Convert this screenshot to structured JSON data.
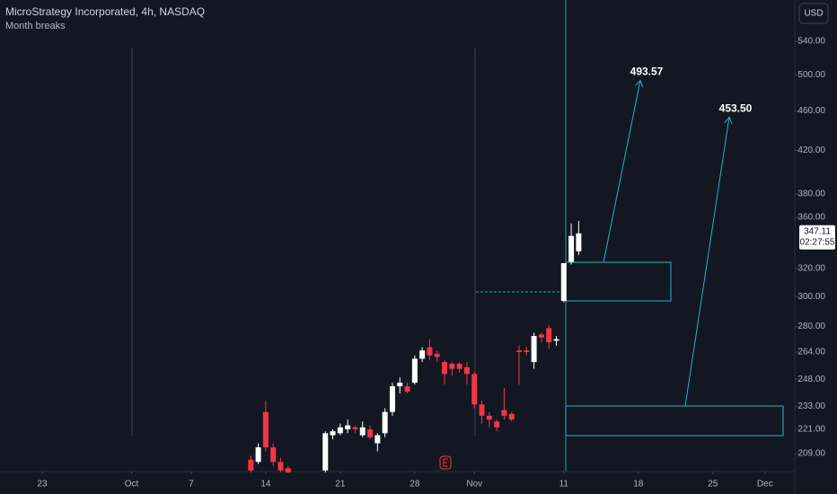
{
  "chart_data": {
    "type": "candlestick",
    "title": "MicroStrategy Incorporated, 4h, NASDAQ",
    "indicator": "Month breaks",
    "currency": "USD",
    "log_scale": true,
    "grid": false,
    "up_color": "#ffffff",
    "down_color": "#f23645",
    "x": [
      28,
      29,
      30,
      31,
      32,
      33,
      38,
      39,
      40,
      41,
      42,
      43,
      44,
      45,
      46,
      47,
      48,
      49,
      50,
      51,
      52,
      53,
      54,
      55,
      56,
      57,
      58,
      59,
      60,
      61,
      62,
      63,
      64,
      65,
      66,
      67,
      68,
      69,
      70,
      71,
      72
    ],
    "open": [
      206,
      205,
      230,
      212,
      205,
      202,
      201,
      218,
      219,
      221,
      222,
      218,
      221,
      214,
      219,
      230,
      244,
      244,
      246,
      260,
      267,
      263,
      258,
      257,
      257,
      255,
      251,
      234,
      228,
      225,
      231,
      229,
      265,
      265,
      258,
      275,
      279,
      271,
      297,
      325,
      333
    ],
    "high": [
      208,
      214,
      236,
      214,
      207,
      203,
      220,
      221,
      224,
      226,
      223,
      225,
      223,
      219,
      232,
      246,
      249,
      246,
      262,
      267,
      272,
      265,
      259,
      258,
      258,
      258,
      252,
      236,
      230,
      226,
      243,
      230,
      268,
      267,
      276,
      276,
      281,
      274,
      324,
      355,
      357
    ],
    "low": [
      200,
      204,
      210,
      203,
      200,
      200,
      200,
      216,
      218,
      219,
      219,
      217,
      216,
      210,
      217,
      228,
      240,
      240,
      245,
      258,
      259,
      258,
      245,
      250,
      252,
      245,
      232,
      224,
      222,
      220,
      226,
      225,
      245,
      262,
      254,
      270,
      266,
      268,
      296,
      323,
      330
    ],
    "close": [
      201,
      212,
      212,
      205,
      201,
      200,
      219,
      220,
      222,
      223,
      221,
      222,
      217,
      218,
      230,
      244,
      246,
      241,
      260,
      265,
      262,
      261,
      251,
      254,
      254,
      251,
      234,
      228,
      226,
      222,
      228,
      226,
      264,
      264,
      274,
      273,
      270,
      272,
      324,
      345,
      347
    ],
    "xlim": [
      -5.66,
      101
    ],
    "xticks": [
      {
        "value": 0,
        "label": "23"
      },
      {
        "value": 12,
        "label": "Oct"
      },
      {
        "value": 20,
        "label": "7"
      },
      {
        "value": 30,
        "label": "14"
      },
      {
        "value": 40,
        "label": "21"
      },
      {
        "value": 50,
        "label": "28"
      },
      {
        "value": 58,
        "label": "Nov"
      },
      {
        "value": 70,
        "label": "11"
      },
      {
        "value": 80,
        "label": "18"
      },
      {
        "value": 90,
        "label": "25"
      },
      {
        "value": 97,
        "label": "Dec"
      }
    ],
    "ylim": [
      200.5,
      594
    ],
    "yticks": [
      {
        "value": 540,
        "label": "540.00"
      },
      {
        "value": 500,
        "label": "500.00"
      },
      {
        "value": 460,
        "label": "460.00"
      },
      {
        "value": 420,
        "label": "420.00"
      },
      {
        "value": 380,
        "label": "380.00"
      },
      {
        "value": 360,
        "label": "360.00"
      },
      {
        "value": 320,
        "label": "320.00"
      },
      {
        "value": 300,
        "label": "300.00"
      },
      {
        "value": 280,
        "label": "280.00"
      },
      {
        "value": 264,
        "label": "264.00"
      },
      {
        "value": 248,
        "label": "248.00"
      },
      {
        "value": 233,
        "label": "233.00"
      },
      {
        "value": 221,
        "label": "221.00"
      },
      {
        "value": 209,
        "label": "209.00"
      }
    ],
    "last_price": {
      "value": 347.11,
      "label": "347.11"
    },
    "countdown": "02:27:55",
    "annotations": [
      {
        "value": 493.57,
        "label": "493.57"
      },
      {
        "value": 453.5,
        "label": "453.50"
      }
    ]
  }
}
